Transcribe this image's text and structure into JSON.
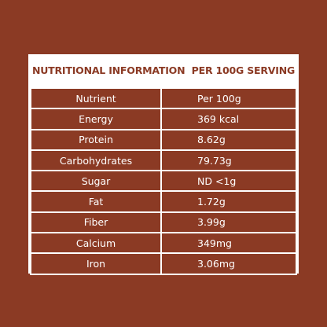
{
  "header": {
    "title": "NUTRITIONAL INFORMATION  PER 100G SERVING"
  },
  "table": {
    "columns": [
      "Nutrient",
      "Per 100g"
    ],
    "rows": [
      [
        "Energy",
        "369 kcal"
      ],
      [
        "Protein",
        "8.62g"
      ],
      [
        "Carbohydrates",
        "79.73g"
      ],
      [
        "Sugar",
        "ND <1g"
      ],
      [
        "Fat",
        "1.72g"
      ],
      [
        "Fiber",
        "3.99g"
      ],
      [
        "Calcium",
        "349mg"
      ],
      [
        "Iron",
        "3.06mg"
      ]
    ]
  }
}
